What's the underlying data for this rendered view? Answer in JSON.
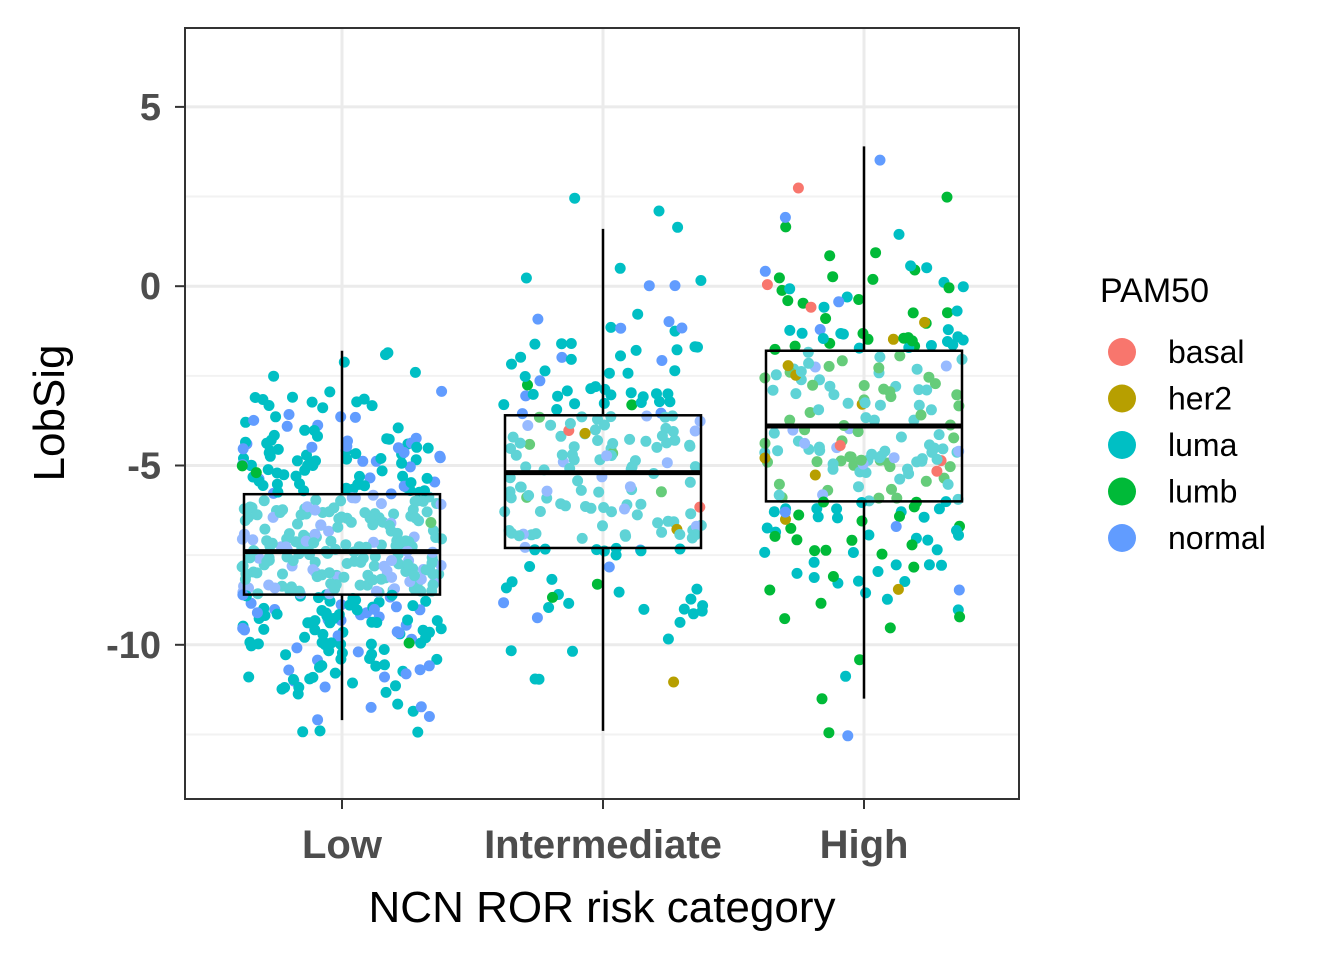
{
  "chart_data": {
    "type": "boxplot-jitter",
    "title": "",
    "xlabel": "NCN ROR risk category",
    "ylabel": "LobSig",
    "categories": [
      "Low",
      "Intermediate",
      "High"
    ],
    "ylim": [
      -14.3,
      7.2
    ],
    "yticks": [
      5,
      0,
      -5,
      -10
    ],
    "ytick_labels": [
      "5",
      "0",
      "-5",
      "-10"
    ],
    "grid": true,
    "legend": {
      "title": "PAM50",
      "position": "right",
      "entries": [
        {
          "name": "basal",
          "color": "#F8766D"
        },
        {
          "name": "her2",
          "color": "#B79F00"
        },
        {
          "name": "luma",
          "color": "#00BFC4"
        },
        {
          "name": "lumb",
          "color": "#00BA38"
        },
        {
          "name": "normal",
          "color": "#619CFF"
        }
      ]
    },
    "boxes": [
      {
        "category": "Low",
        "whisker_low": -12.1,
        "q1": -8.6,
        "median": -7.4,
        "q3": -5.8,
        "whisker_high": -1.8
      },
      {
        "category": "Intermediate",
        "whisker_low": -12.4,
        "q1": -7.3,
        "median": -5.2,
        "q3": -3.6,
        "whisker_high": 1.6
      },
      {
        "category": "High",
        "whisker_low": -11.5,
        "q1": -6.0,
        "median": -3.9,
        "q3": -1.8,
        "whisker_high": 3.9
      }
    ],
    "points_per_group": [
      420,
      200,
      250
    ],
    "group_mix": [
      {
        "basal": 0.0,
        "her2": 0.0,
        "luma": 0.72,
        "lumb": 0.02,
        "normal": 0.26
      },
      {
        "basal": 0.015,
        "her2": 0.015,
        "luma": 0.78,
        "lumb": 0.07,
        "normal": 0.12
      },
      {
        "basal": 0.025,
        "her2": 0.035,
        "luma": 0.45,
        "lumb": 0.42,
        "normal": 0.07
      }
    ]
  }
}
